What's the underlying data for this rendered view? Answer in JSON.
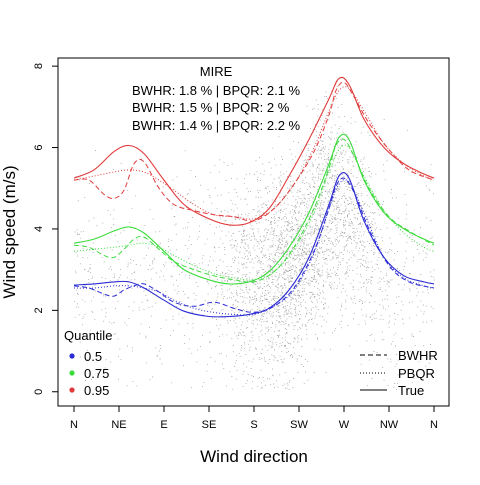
{
  "chart_data": {
    "type": "line",
    "xlabel": "Wind direction",
    "ylabel": "Wind speed (m/s)",
    "xlim": [
      0,
      360
    ],
    "ylim": [
      -0.35,
      8.2
    ],
    "x_ticks": [
      {
        "deg": 0,
        "label": "N"
      },
      {
        "deg": 45,
        "label": "NE"
      },
      {
        "deg": 90,
        "label": "E"
      },
      {
        "deg": 135,
        "label": "SE"
      },
      {
        "deg": 180,
        "label": "S"
      },
      {
        "deg": 225,
        "label": "SW"
      },
      {
        "deg": 270,
        "label": "W"
      },
      {
        "deg": 315,
        "label": "NW"
      },
      {
        "deg": 360,
        "label": "N"
      }
    ],
    "y_ticks": [
      0,
      2,
      4,
      6,
      8
    ],
    "annotation": {
      "title": "MIRE",
      "lines": [
        "BWHR:  1.8 % | BPQR:  2.1 %",
        "BWHR:  1.5 % | BPQR:  2 %",
        "BWHR:  1.4 % | BPQR:  2.2 %"
      ]
    },
    "legend_quantile": {
      "title": "Quantile",
      "placement": "bottom-left",
      "entries": [
        {
          "label": "0.5",
          "color": "#2b2bd6"
        },
        {
          "label": "0.75",
          "color": "#3ddc3d"
        },
        {
          "label": "0.95",
          "color": "#e03a3a"
        }
      ]
    },
    "legend_method": {
      "placement": "bottom-right",
      "entries": [
        {
          "label": "BWHR",
          "dash": "dashed"
        },
        {
          "label": "PBQR",
          "dash": "dotted"
        },
        {
          "label": "True",
          "dash": "solid"
        }
      ]
    },
    "scatter": {
      "description_color": "#a8a8a8",
      "n_points": 4200
    },
    "series": [
      {
        "quantile": "0.95",
        "method": "True",
        "color": "#e03a3a",
        "x": [
          0,
          20,
          40,
          55,
          70,
          90,
          110,
          135,
          155,
          175,
          195,
          215,
          235,
          255,
          265,
          275,
          290,
          310,
          330,
          350,
          360
        ],
        "y": [
          5.25,
          5.45,
          5.9,
          6.05,
          5.85,
          5.2,
          4.6,
          4.25,
          4.1,
          4.15,
          4.5,
          5.3,
          6.2,
          7.2,
          7.7,
          7.55,
          6.7,
          6.0,
          5.6,
          5.35,
          5.25
        ]
      },
      {
        "quantile": "0.95",
        "method": "BWHR",
        "color": "#e03a3a",
        "x": [
          0,
          15,
          30,
          40,
          50,
          60,
          70,
          85,
          100,
          120,
          140,
          160,
          180,
          200,
          220,
          240,
          255,
          262,
          270,
          280,
          295,
          315,
          335,
          360
        ],
        "y": [
          5.2,
          5.2,
          4.85,
          4.75,
          4.95,
          5.6,
          5.65,
          5.0,
          4.6,
          4.45,
          4.35,
          4.3,
          4.2,
          4.5,
          5.1,
          5.9,
          6.8,
          7.4,
          7.6,
          7.25,
          6.6,
          5.95,
          5.45,
          5.2
        ]
      },
      {
        "quantile": "0.95",
        "method": "PBQR",
        "color": "#e03a3a",
        "x": [
          0,
          20,
          40,
          55,
          70,
          85,
          100,
          120,
          140,
          160,
          180,
          200,
          220,
          240,
          255,
          265,
          275,
          290,
          310,
          330,
          350,
          360
        ],
        "y": [
          5.2,
          5.3,
          5.4,
          5.45,
          5.4,
          5.2,
          4.95,
          4.6,
          4.35,
          4.3,
          4.25,
          4.5,
          5.1,
          6.0,
          6.9,
          7.4,
          7.45,
          6.9,
          6.1,
          5.6,
          5.3,
          5.2
        ]
      },
      {
        "quantile": "0.75",
        "method": "True",
        "color": "#3ddc3d",
        "x": [
          0,
          20,
          40,
          55,
          70,
          90,
          110,
          135,
          155,
          175,
          195,
          215,
          235,
          255,
          265,
          275,
          290,
          310,
          330,
          350,
          360
        ],
        "y": [
          3.65,
          3.75,
          3.95,
          4.05,
          3.9,
          3.45,
          3.0,
          2.75,
          2.65,
          2.7,
          2.95,
          3.55,
          4.4,
          5.6,
          6.25,
          6.2,
          5.2,
          4.4,
          4.0,
          3.75,
          3.65
        ]
      },
      {
        "quantile": "0.75",
        "method": "BWHR",
        "color": "#3ddc3d",
        "x": [
          0,
          15,
          30,
          40,
          50,
          60,
          70,
          85,
          100,
          120,
          140,
          160,
          180,
          200,
          220,
          240,
          255,
          262,
          270,
          280,
          295,
          315,
          335,
          360
        ],
        "y": [
          3.6,
          3.55,
          3.35,
          3.3,
          3.5,
          3.75,
          3.8,
          3.5,
          3.2,
          3.0,
          2.85,
          2.75,
          2.7,
          2.95,
          3.55,
          4.5,
          5.5,
          6.05,
          6.2,
          5.8,
          5.0,
          4.3,
          3.95,
          3.6
        ]
      },
      {
        "quantile": "0.75",
        "method": "PBQR",
        "color": "#3ddc3d",
        "x": [
          0,
          20,
          40,
          55,
          70,
          85,
          100,
          120,
          140,
          160,
          180,
          200,
          220,
          240,
          255,
          265,
          275,
          290,
          310,
          330,
          350,
          360
        ],
        "y": [
          3.45,
          3.5,
          3.55,
          3.6,
          3.65,
          3.55,
          3.35,
          3.1,
          2.9,
          2.8,
          2.75,
          2.95,
          3.5,
          4.4,
          5.4,
          5.95,
          6.0,
          5.3,
          4.45,
          3.9,
          3.55,
          3.45
        ]
      },
      {
        "quantile": "0.5",
        "method": "True",
        "color": "#2b2bd6",
        "x": [
          0,
          20,
          40,
          55,
          70,
          90,
          110,
          135,
          155,
          175,
          195,
          215,
          235,
          255,
          265,
          275,
          290,
          310,
          330,
          350,
          360
        ],
        "y": [
          2.62,
          2.65,
          2.7,
          2.7,
          2.55,
          2.25,
          1.98,
          1.85,
          1.85,
          1.9,
          2.05,
          2.5,
          3.3,
          4.6,
          5.3,
          5.25,
          4.2,
          3.3,
          2.85,
          2.7,
          2.65
        ]
      },
      {
        "quantile": "0.5",
        "method": "BWHR",
        "color": "#2b2bd6",
        "x": [
          0,
          15,
          30,
          40,
          50,
          60,
          70,
          85,
          100,
          120,
          140,
          160,
          180,
          200,
          220,
          240,
          255,
          262,
          270,
          280,
          295,
          315,
          335,
          360
        ],
        "y": [
          2.6,
          2.55,
          2.4,
          2.35,
          2.5,
          2.6,
          2.65,
          2.45,
          2.2,
          2.1,
          2.2,
          2.05,
          1.95,
          2.1,
          2.55,
          3.45,
          4.5,
          5.05,
          5.25,
          4.9,
          4.0,
          3.1,
          2.7,
          2.55
        ]
      },
      {
        "quantile": "0.5",
        "method": "PBQR",
        "color": "#2b2bd6",
        "x": [
          0,
          20,
          40,
          55,
          70,
          85,
          100,
          120,
          140,
          160,
          180,
          200,
          220,
          240,
          255,
          265,
          275,
          290,
          310,
          330,
          350,
          360
        ],
        "y": [
          2.55,
          2.55,
          2.6,
          2.6,
          2.55,
          2.45,
          2.25,
          2.05,
          1.95,
          1.9,
          1.9,
          2.1,
          2.5,
          3.4,
          4.5,
          5.1,
          5.15,
          4.4,
          3.3,
          2.8,
          2.6,
          2.55
        ]
      }
    ]
  }
}
